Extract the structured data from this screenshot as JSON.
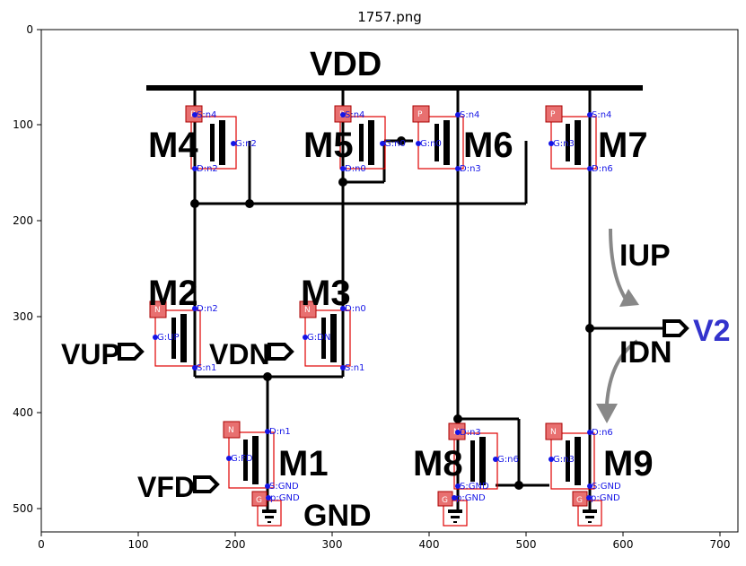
{
  "figure": {
    "title": "1757.png"
  },
  "axes": {
    "x_ticks": [
      "0",
      "100",
      "200",
      "300",
      "400",
      "500",
      "600",
      "700"
    ],
    "y_ticks": [
      "0",
      "100",
      "200",
      "300",
      "400",
      "500"
    ]
  },
  "labels": {
    "vdd": "VDD",
    "gnd": "GND",
    "vup": "VUP",
    "vdn": "VDN",
    "vfd": "VFD",
    "v2": "V2",
    "iup": "IUP",
    "idn": "IDN"
  },
  "transistors": [
    {
      "name": "M4",
      "type": "P",
      "pins": [
        "S:n4",
        "G:n2",
        "D:n2"
      ]
    },
    {
      "name": "M5",
      "type": "P",
      "pins": [
        "S:n4",
        "G:n0",
        "D:n0"
      ]
    },
    {
      "name": "M6",
      "type": "P",
      "pins": [
        "S:n4",
        "G:n0",
        "D:n3"
      ]
    },
    {
      "name": "M7",
      "type": "P",
      "pins": [
        "S:n4",
        "G:n3",
        "D:n6"
      ]
    },
    {
      "name": "M2",
      "type": "N",
      "pins": [
        "D:n2",
        "G:UP",
        "S:n1"
      ]
    },
    {
      "name": "M3",
      "type": "N",
      "pins": [
        "D:n0",
        "G:DN",
        "S:n1"
      ]
    },
    {
      "name": "M1",
      "type": "N",
      "pins": [
        "D:n1",
        "G:FD",
        "S:GND"
      ]
    },
    {
      "name": "M8",
      "type": "N",
      "pins": [
        "D:n3",
        "G:n6",
        "S:GND"
      ]
    },
    {
      "name": "M9",
      "type": "N",
      "pins": [
        "D:n6",
        "G:n3",
        "S:GND"
      ]
    }
  ],
  "grounds": [
    {
      "tag": "G",
      "pin": "p:GND"
    },
    {
      "tag": "G",
      "pin": "p:GND"
    },
    {
      "tag": "G",
      "pin": "p:GND"
    }
  ],
  "colors": {
    "wire": "#000000",
    "box": "#e00000",
    "pin_text": "#1515e6",
    "tag_fill": "#e87070",
    "arrow": "#888888",
    "v2_text": "#3333cc"
  }
}
